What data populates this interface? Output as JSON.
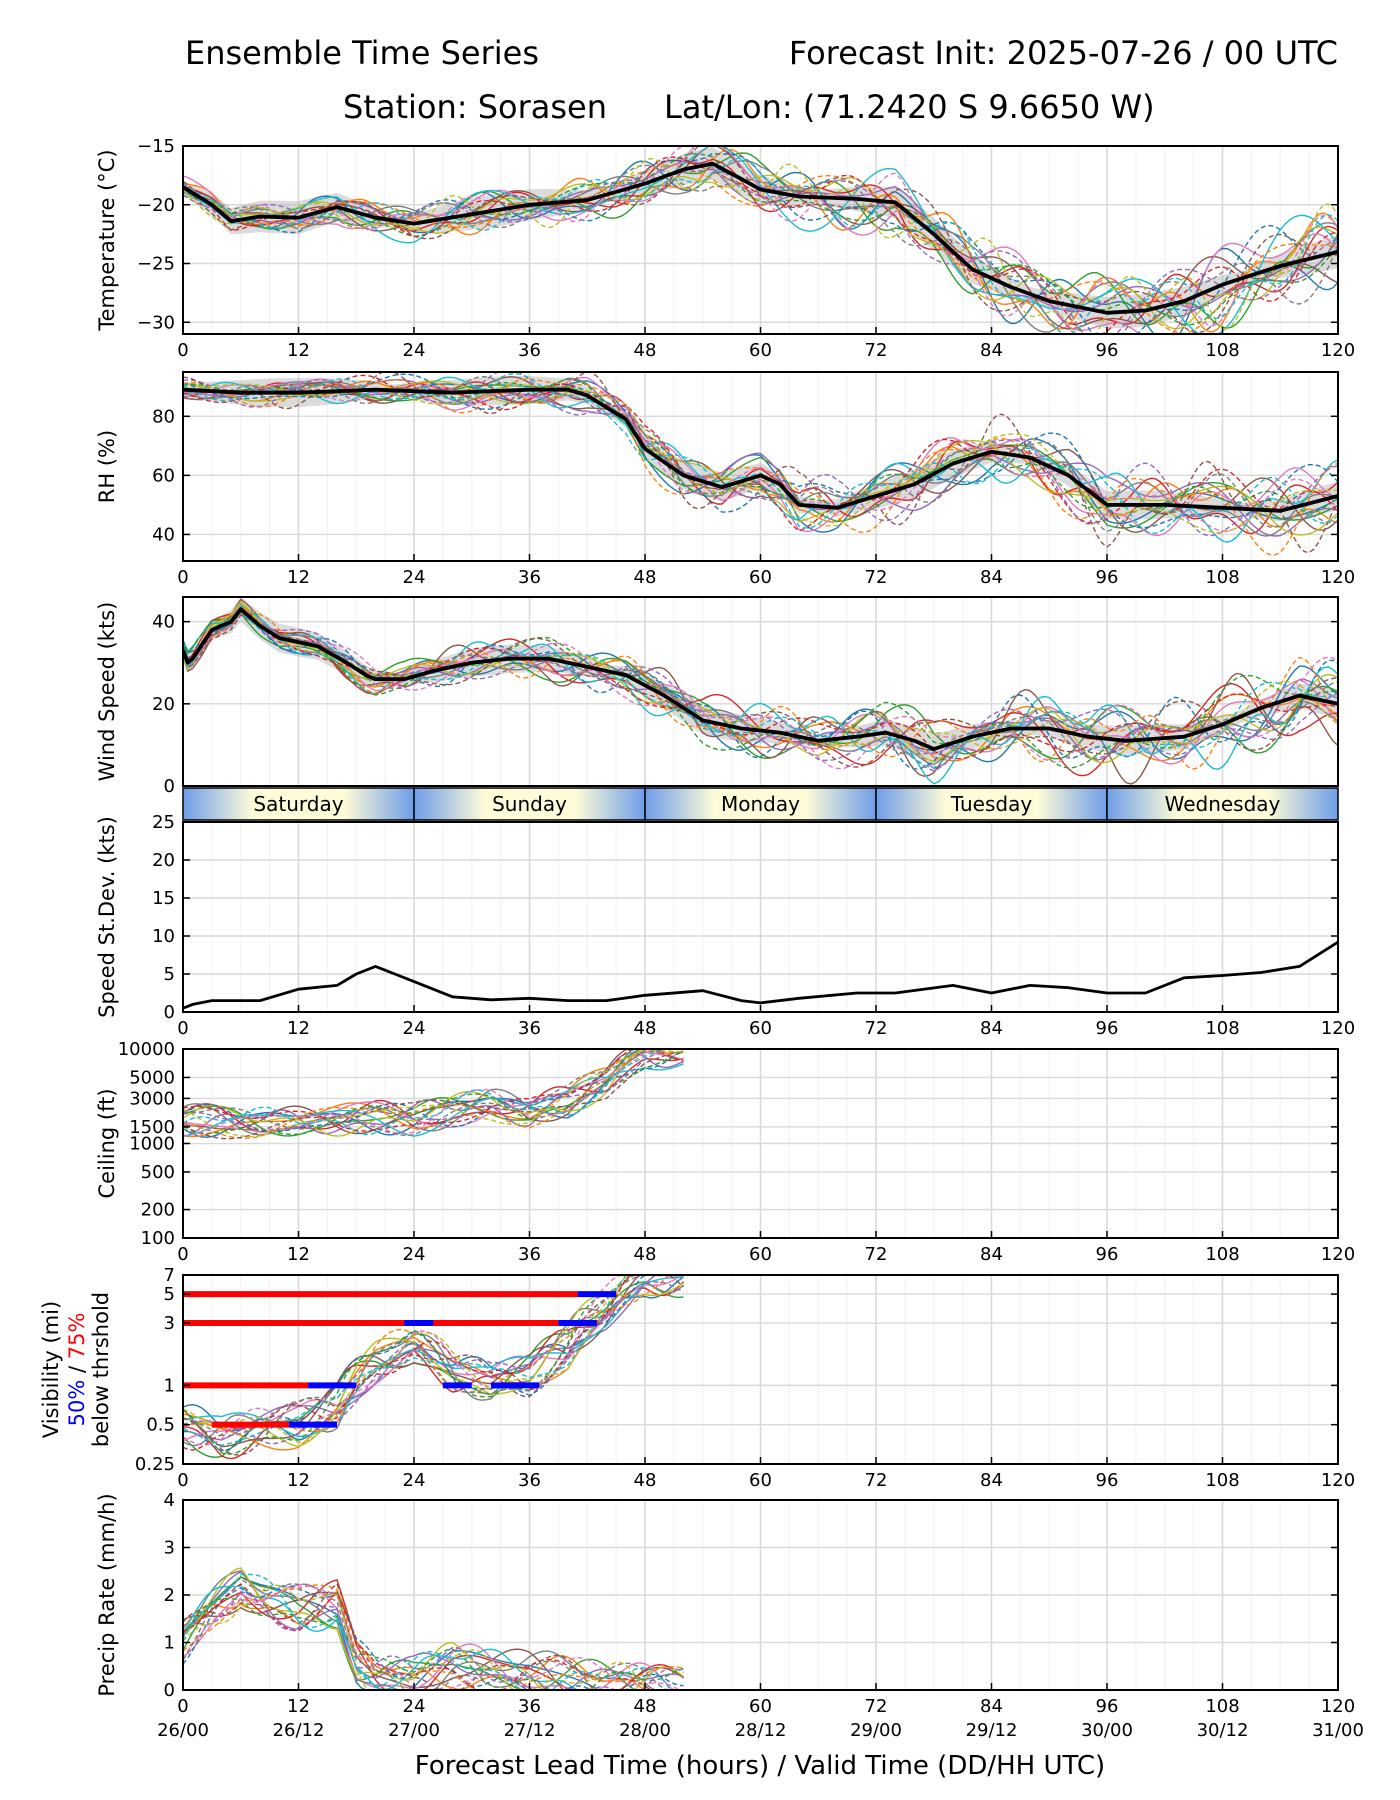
{
  "header": {
    "title_left": "Ensemble Time Series",
    "title_right": "Forecast Init: 2025-07-26 / 00 UTC",
    "station": "Station: Sorasen",
    "latlon": "Lat/Lon: (71.2420 S 9.6650 W)",
    "xlabel": "Forecast Lead Time (hours) / Valid Time (DD/HH UTC)"
  },
  "x_ticks": [
    "0",
    "12",
    "24",
    "36",
    "48",
    "60",
    "72",
    "84",
    "96",
    "108",
    "120"
  ],
  "valid_ticks": [
    "26/00",
    "26/12",
    "27/00",
    "27/12",
    "28/00",
    "28/12",
    "29/00",
    "29/12",
    "30/00",
    "30/12",
    "31/00"
  ],
  "days": [
    "Saturday",
    "Sunday",
    "Monday",
    "Tuesday",
    "Wednesday"
  ],
  "colors": {
    "members": [
      "#1f77b4",
      "#ff7f0e",
      "#2ca02c",
      "#d62728",
      "#9467bd",
      "#8c564b",
      "#e377c2",
      "#7f7f7f",
      "#bcbd22",
      "#17becf"
    ],
    "mean": "#000000",
    "p50": "#0000ff",
    "p75": "#ff0000",
    "day_light": "#fdfbd8",
    "day_dark": "#6e9de8"
  },
  "chart_data": [
    {
      "type": "line",
      "id": "temperature",
      "ylabel": "Temperature (°C)",
      "ylim": [
        -31,
        -15
      ],
      "yticks": [
        -30,
        -25,
        -20,
        -15
      ],
      "ytick_labels": [
        "−30",
        "−25",
        "−20",
        "−15"
      ],
      "xlim": [
        0,
        120
      ],
      "grid": true,
      "series": [
        {
          "x": [
            0,
            3,
            5,
            8,
            12,
            16,
            20,
            24,
            30,
            36,
            42,
            48,
            52,
            55,
            58,
            60,
            64,
            70,
            74,
            78,
            82,
            86,
            90,
            96,
            100,
            104,
            108,
            114,
            120
          ],
          "values": [
            -18.5,
            -20,
            -21.4,
            -21,
            -21.1,
            -20.2,
            -21.1,
            -21.6,
            -20.8,
            -20,
            -19.6,
            -18.2,
            -17.0,
            -16.5,
            -17.8,
            -18.7,
            -19.3,
            -19.5,
            -19.8,
            -22.5,
            -25.5,
            -27.0,
            -28.2,
            -29.2,
            -29.0,
            -28.2,
            -26.8,
            -25.2,
            -24.0
          ]
        }
      ],
      "spread": 1.0
    },
    {
      "type": "line",
      "id": "rh",
      "ylabel": "RH (%)",
      "ylim": [
        31,
        95
      ],
      "yticks": [
        40,
        60,
        80
      ],
      "ytick_labels": [
        "40",
        "60",
        "80"
      ],
      "xlim": [
        0,
        120
      ],
      "grid": true,
      "series": [
        {
          "x": [
            0,
            6,
            12,
            20,
            28,
            36,
            40,
            42,
            46,
            48,
            52,
            56,
            58,
            60,
            62,
            64,
            68,
            72,
            76,
            80,
            84,
            88,
            92,
            96,
            102,
            108,
            114,
            120
          ],
          "values": [
            89,
            88,
            88,
            89,
            88,
            89,
            89,
            87,
            79,
            69,
            60,
            56,
            58,
            60,
            57,
            50,
            49,
            53,
            57,
            64,
            68,
            66,
            60,
            50,
            50,
            49,
            48,
            53
          ]
        }
      ],
      "spread": 3.5
    },
    {
      "type": "line",
      "id": "wind",
      "ylabel": "Wind Speed (kts)",
      "ylim": [
        0,
        46
      ],
      "yticks": [
        0,
        20,
        40
      ],
      "ytick_labels": [
        "0",
        "20",
        "40"
      ],
      "xlim": [
        0,
        120
      ],
      "grid": true,
      "series": [
        {
          "x": [
            0,
            0.5,
            1,
            3,
            5,
            6,
            8,
            10,
            14,
            17,
            19,
            20,
            23,
            26,
            30,
            34,
            38,
            42,
            46,
            50,
            54,
            58,
            62,
            66,
            70,
            73,
            76,
            78,
            82,
            86,
            90,
            94,
            98,
            104,
            108,
            112,
            116,
            120
          ],
          "values": [
            33,
            30,
            31,
            38,
            40,
            43,
            39,
            36,
            34,
            30,
            27,
            26,
            26,
            28,
            30,
            31,
            31,
            29,
            27,
            22,
            16,
            14,
            13,
            11,
            12,
            13,
            11,
            9,
            12,
            14,
            14,
            12,
            11,
            12,
            15,
            19,
            22,
            20
          ]
        }
      ],
      "spread": 2.5
    },
    {
      "type": "line",
      "id": "stdev",
      "ylabel": "Speed St.Dev. (kts)",
      "ylim": [
        0,
        25
      ],
      "yticks": [
        0,
        5,
        10,
        15,
        20,
        25
      ],
      "ytick_labels": [
        "0",
        "5",
        "10",
        "15",
        "20",
        "25"
      ],
      "xlim": [
        0,
        120
      ],
      "grid": true,
      "series": [
        {
          "x": [
            0,
            1,
            3,
            5,
            8,
            12,
            16,
            18,
            20,
            22,
            24,
            28,
            32,
            36,
            40,
            44,
            48,
            54,
            58,
            60,
            64,
            70,
            74,
            80,
            84,
            88,
            92,
            96,
            100,
            104,
            108,
            112,
            116,
            120
          ],
          "values": [
            0.5,
            1,
            1.5,
            1.5,
            1.5,
            3,
            3.5,
            5,
            6,
            5,
            4,
            2,
            1.6,
            1.8,
            1.5,
            1.5,
            2.2,
            2.8,
            1.5,
            1.2,
            1.8,
            2.5,
            2.5,
            3.5,
            2.5,
            3.5,
            3.2,
            2.5,
            2.5,
            4.5,
            4.8,
            5.2,
            6.0,
            9.2
          ]
        }
      ]
    },
    {
      "type": "line",
      "id": "ceiling",
      "ylabel": "Ceiling (ft)",
      "scale": "log",
      "ylim": [
        100,
        10000
      ],
      "yticks": [
        100,
        200,
        500,
        1000,
        1500,
        3000,
        5000,
        10000
      ],
      "ytick_labels": [
        "100",
        "200",
        "500",
        "1000",
        "1500",
        "3000",
        "5000",
        "10000"
      ],
      "xlim": [
        0,
        120
      ],
      "grid": true,
      "series": [
        {
          "x": [
            0,
            4,
            8,
            12,
            16,
            20,
            24,
            28,
            32,
            36,
            40,
            44,
            48
          ],
          "values": [
            1800,
            1700,
            1600,
            1700,
            1800,
            1900,
            1800,
            2200,
            2600,
            2200,
            2800,
            4500,
            9000
          ]
        }
      ]
    },
    {
      "type": "line",
      "id": "visibility",
      "ylabel": "Visibility (mi)",
      "ylabel_50": "50%",
      "ylabel_75": "75%",
      "ylabel_3": "below thrshold",
      "scale": "log",
      "ylim": [
        0.25,
        7
      ],
      "yticks": [
        0.25,
        0.5,
        1,
        3,
        5,
        7
      ],
      "ytick_labels": [
        "0.25",
        "0.5",
        "1",
        "3",
        "5",
        "7"
      ],
      "xlim": [
        0,
        120
      ],
      "grid": true,
      "series": [
        {
          "x": [
            0,
            4,
            8,
            12,
            16,
            20,
            24,
            28,
            32,
            36,
            40,
            44,
            48
          ],
          "values": [
            0.5,
            0.4,
            0.45,
            0.5,
            0.7,
            1.5,
            2.0,
            1.3,
            1.0,
            1.2,
            2.0,
            4.0,
            7.0
          ]
        }
      ],
      "threshold_bars": [
        {
          "threshold": 5,
          "p75": [
            0,
            41
          ],
          "p50": [
            41,
            45
          ]
        },
        {
          "threshold": 3,
          "p75": [
            0,
            39
          ],
          "p50": [
            [
              23,
              26
            ],
            [
              39,
              43
            ]
          ]
        },
        {
          "threshold": 1,
          "p75": [
            0,
            13
          ],
          "p50": [
            [
              13,
              18
            ],
            [
              27,
              30
            ],
            [
              32,
              37
            ]
          ]
        },
        {
          "threshold": 0.5,
          "p75": [
            3,
            11
          ],
          "p50": [
            11,
            16
          ]
        }
      ]
    },
    {
      "type": "line",
      "id": "precip",
      "ylabel": "Precip Rate (mm/h)",
      "ylim": [
        0,
        4
      ],
      "yticks": [
        0,
        1,
        2,
        3,
        4
      ],
      "ytick_labels": [
        "0",
        "1",
        "2",
        "3",
        "4"
      ],
      "xlim": [
        0,
        120
      ],
      "grid": true,
      "series": [
        {
          "x": [
            0,
            3,
            6,
            8,
            12,
            16,
            18,
            20,
            24,
            28,
            32,
            36,
            40,
            44,
            48,
            52
          ],
          "values": [
            1.0,
            1.6,
            2.2,
            2.0,
            1.7,
            1.8,
            0.6,
            0.3,
            0.2,
            0.5,
            0.4,
            0.4,
            0.2,
            0.1,
            0.05,
            0
          ]
        }
      ]
    }
  ]
}
